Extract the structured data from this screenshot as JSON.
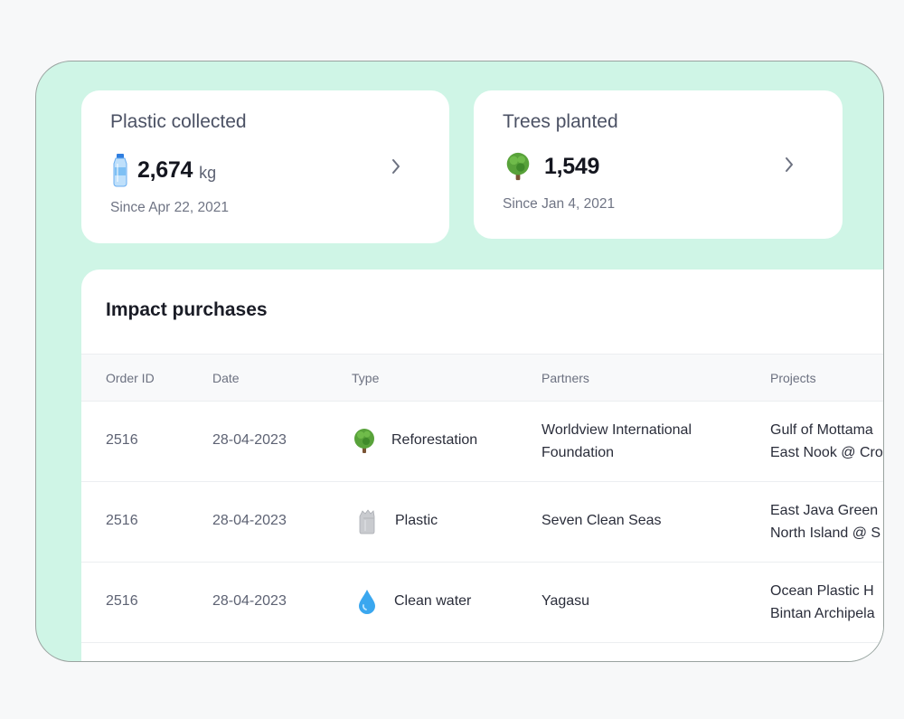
{
  "cards": {
    "plastic": {
      "title": "Plastic collected",
      "value": "2,674",
      "unit": "kg",
      "since": "Since Apr 22, 2021",
      "icon": "water-bottle-icon"
    },
    "trees": {
      "title": "Trees planted",
      "value": "1,549",
      "since": "Since Jan 4, 2021",
      "icon": "tree-icon"
    }
  },
  "purchases": {
    "title": "Impact purchases",
    "columns": [
      "Order ID",
      "Date",
      "Type",
      "Partners",
      "Projects"
    ],
    "rows": [
      {
        "order_id": "2516",
        "date": "28-04-2023",
        "type": "Reforestation",
        "type_icon": "tree-icon",
        "partner_line1": "Worldview International",
        "partner_line2": "Foundation",
        "project_line1": "Gulf of Mottama",
        "project_line2": "East Nook @ Cro"
      },
      {
        "order_id": "2516",
        "date": "28-04-2023",
        "type": "Plastic",
        "type_icon": "plastic-bag-icon",
        "partner_line1": "Seven Clean Seas",
        "project_line1": "East Java Green",
        "project_line2": "North Island @ S"
      },
      {
        "order_id": "2516",
        "date": "28-04-2023",
        "type": "Clean water",
        "type_icon": "water-drop-icon",
        "partner_line1": "Yagasu",
        "project_line1": "Ocean Plastic H",
        "project_line2": "Bintan Archipela"
      }
    ]
  },
  "colors": {
    "frame_background": "#cff5e6",
    "card_background": "#ffffff",
    "page_background": "#f7f8f9"
  }
}
